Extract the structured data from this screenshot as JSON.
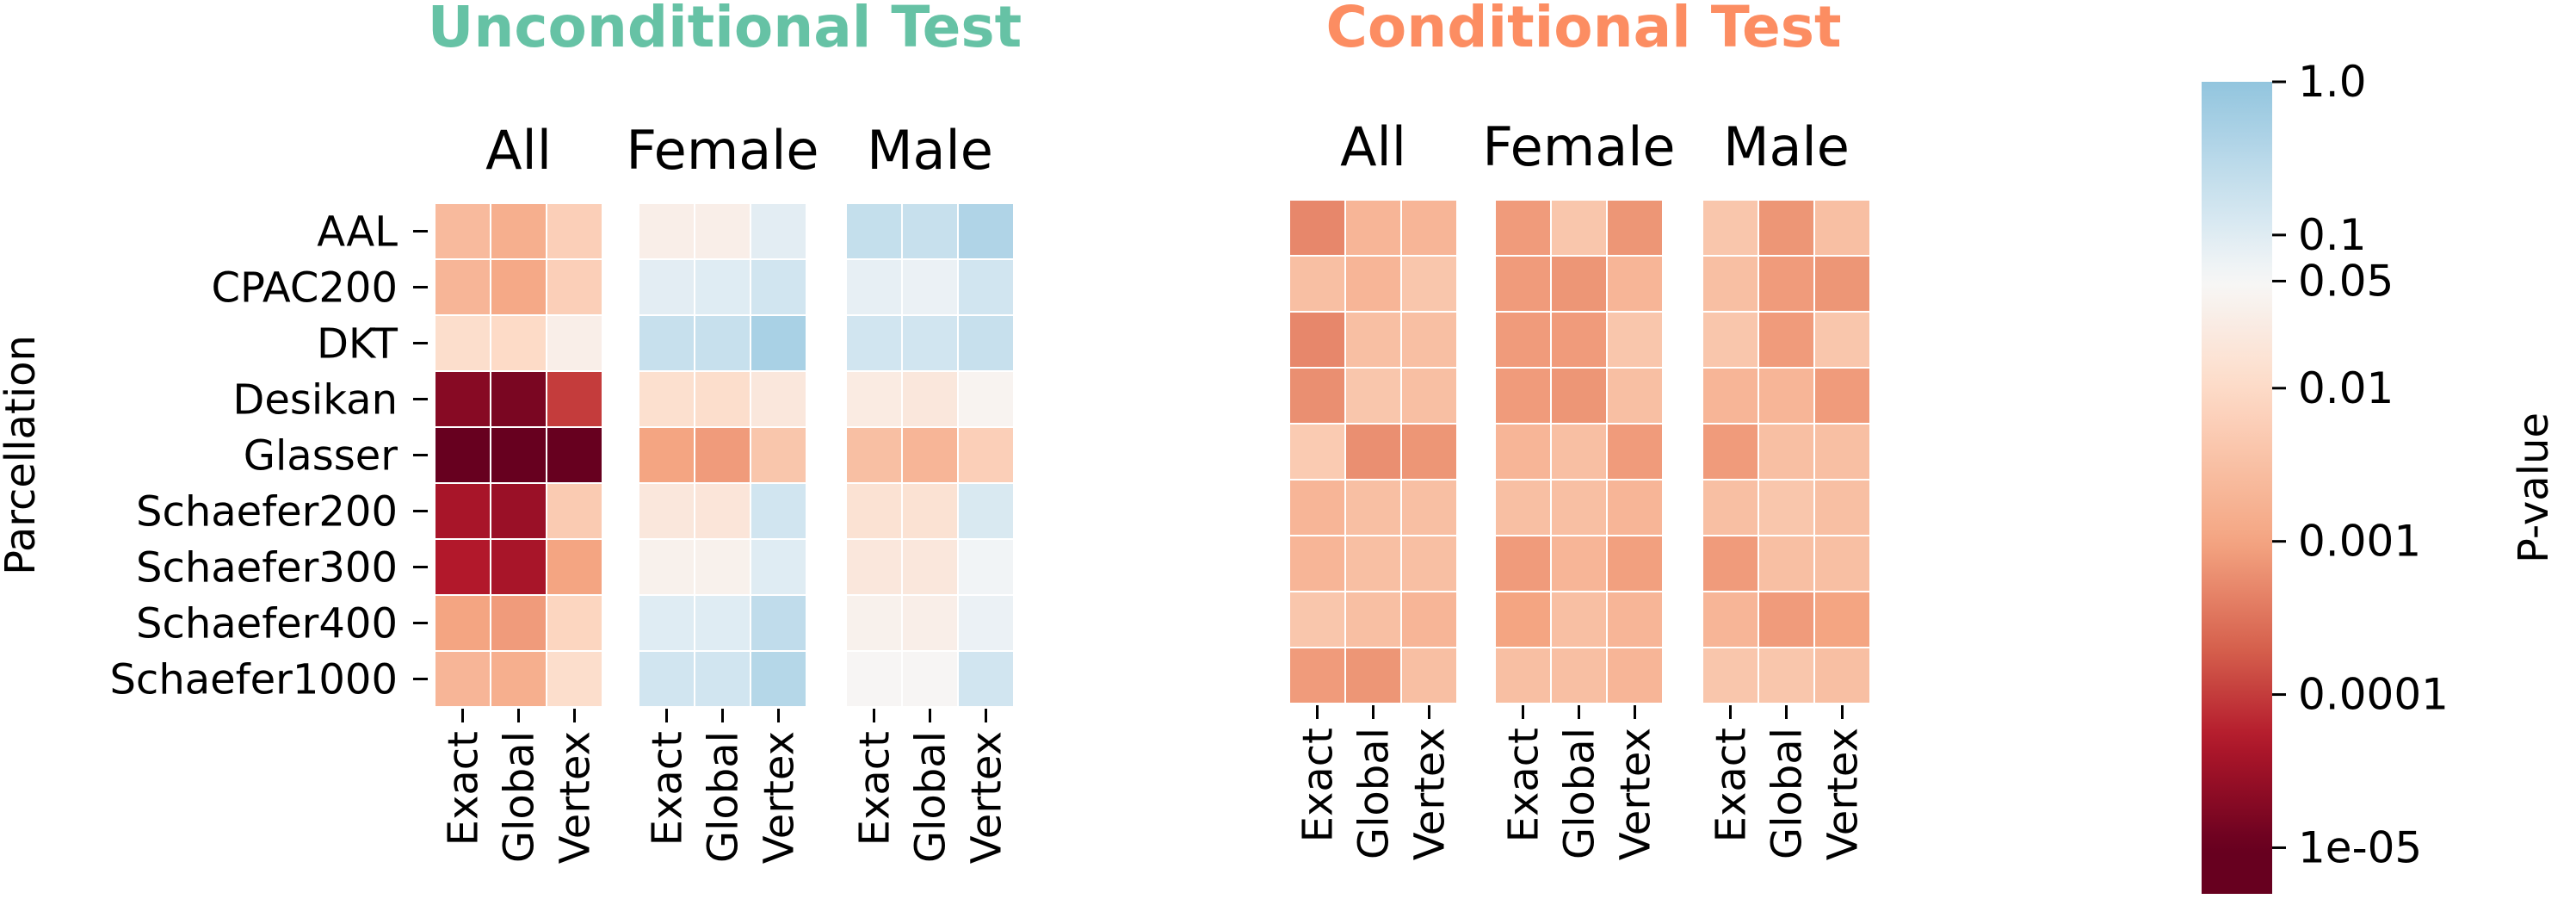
{
  "chart_data": {
    "type": "heatmap",
    "title": "",
    "scale": "log",
    "groups": [
      {
        "title": "Unconditional Test",
        "title_color": "#66c2a5",
        "panels": [
          {
            "title": "All",
            "values": [
              [
                0.0025,
                0.0015,
                0.006
              ],
              [
                0.002,
                0.0012,
                0.006
              ],
              [
                0.012,
                0.01,
                0.03
              ],
              [
                2e-05,
                1.5e-05,
                0.0001
              ],
              [
                2e-06,
                1.5e-06,
                1e-06
              ],
              [
                4e-05,
                3e-05,
                0.005
              ],
              [
                5e-05,
                4e-05,
                0.001
              ],
              [
                0.001,
                0.0008,
                0.008
              ],
              [
                0.002,
                0.0015,
                0.012
              ]
            ]
          },
          {
            "title": "Female",
            "values": [
              [
                0.03,
                0.03,
                0.09
              ],
              [
                0.09,
                0.1,
                0.15
              ],
              [
                0.2,
                0.2,
                0.5
              ],
              [
                0.013,
                0.012,
                0.02
              ],
              [
                0.001,
                0.0008,
                0.004
              ],
              [
                0.02,
                0.018,
                0.15
              ],
              [
                0.035,
                0.035,
                0.1
              ],
              [
                0.1,
                0.1,
                0.25
              ],
              [
                0.15,
                0.15,
                0.35
              ]
            ]
          },
          {
            "title": "Male",
            "values": [
              [
                0.22,
                0.2,
                0.4
              ],
              [
                0.08,
                0.07,
                0.15
              ],
              [
                0.15,
                0.15,
                0.2
              ],
              [
                0.025,
                0.02,
                0.04
              ],
              [
                0.003,
                0.002,
                0.006
              ],
              [
                0.015,
                0.015,
                0.12
              ],
              [
                0.02,
                0.02,
                0.06
              ],
              [
                0.035,
                0.03,
                0.07
              ],
              [
                0.045,
                0.045,
                0.15
              ]
            ]
          }
        ]
      },
      {
        "title": "Conditional Test",
        "title_color": "#fc8d62",
        "panels": [
          {
            "title": "All",
            "values": [
              [
                0.0005,
                0.002,
                0.002
              ],
              [
                0.003,
                0.002,
                0.004
              ],
              [
                0.0005,
                0.003,
                0.003
              ],
              [
                0.0006,
                0.004,
                0.003
              ],
              [
                0.005,
                0.0006,
                0.0007
              ],
              [
                0.002,
                0.003,
                0.003
              ],
              [
                0.002,
                0.003,
                0.003
              ],
              [
                0.004,
                0.003,
                0.002
              ],
              [
                0.0008,
                0.0007,
                0.003
              ]
            ]
          },
          {
            "title": "Female",
            "values": [
              [
                0.0008,
                0.004,
                0.0007
              ],
              [
                0.0008,
                0.0007,
                0.002
              ],
              [
                0.0008,
                0.0008,
                0.004
              ],
              [
                0.0008,
                0.0007,
                0.003
              ],
              [
                0.002,
                0.003,
                0.0008
              ],
              [
                0.003,
                0.003,
                0.002
              ],
              [
                0.0008,
                0.002,
                0.0009
              ],
              [
                0.001,
                0.003,
                0.002
              ],
              [
                0.003,
                0.003,
                0.002
              ]
            ]
          },
          {
            "title": "Male",
            "values": [
              [
                0.004,
                0.0007,
                0.003
              ],
              [
                0.003,
                0.0008,
                0.0007
              ],
              [
                0.004,
                0.0008,
                0.004
              ],
              [
                0.002,
                0.002,
                0.0008
              ],
              [
                0.0008,
                0.003,
                0.003
              ],
              [
                0.003,
                0.004,
                0.003
              ],
              [
                0.0008,
                0.003,
                0.003
              ],
              [
                0.002,
                0.0008,
                0.001
              ],
              [
                0.004,
                0.004,
                0.003
              ]
            ]
          }
        ]
      }
    ],
    "rows": [
      "AAL",
      "CPAC200",
      "DKT",
      "Desikan",
      "Glasser",
      "Schaefer200",
      "Schaefer300",
      "Schaefer400",
      "Schaefer1000"
    ],
    "columns": [
      "Exact",
      "Global",
      "Vertex"
    ],
    "ylabel": "Parcellation",
    "colorbar": {
      "label": "P-value",
      "range": [
        5e-06,
        1.0
      ],
      "ticks": [
        {
          "value": 1.0,
          "label": "1.0"
        },
        {
          "value": 0.1,
          "label": "0.1"
        },
        {
          "value": 0.05,
          "label": "0.05"
        },
        {
          "value": 0.01,
          "label": "0.01"
        },
        {
          "value": 0.001,
          "label": "0.001"
        },
        {
          "value": 0.0001,
          "label": "0.0001"
        },
        {
          "value": 1e-05,
          "label": "1e-05"
        }
      ],
      "colormap": [
        "#67001f",
        "#b2182b",
        "#d6604d",
        "#f4a582",
        "#fddbc7",
        "#f7f7f7",
        "#d1e5f0",
        "#92c5de"
      ],
      "colormap_stops": [
        1e-05,
        5e-05,
        0.0002,
        0.001,
        0.01,
        0.05,
        0.15,
        1.0
      ]
    }
  }
}
